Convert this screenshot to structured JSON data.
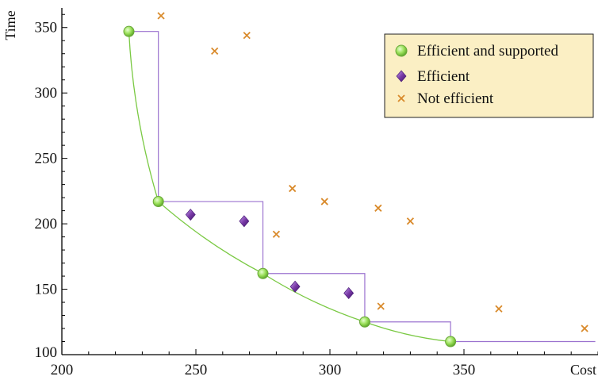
{
  "chart_data": {
    "type": "scatter",
    "xlabel": "Cost",
    "ylabel": "Time",
    "xlim": [
      200,
      400
    ],
    "ylim": [
      100,
      365
    ],
    "xticks": [
      200,
      250,
      300,
      350
    ],
    "yticks": [
      100,
      150,
      200,
      250,
      300,
      350
    ],
    "grid": false,
    "legend_position": "top-right",
    "series": [
      {
        "name": "Efficient and supported",
        "marker": "circle",
        "color": "#8fd14f",
        "points": [
          [
            225,
            347
          ],
          [
            236,
            217
          ],
          [
            275,
            162
          ],
          [
            313,
            125
          ],
          [
            345,
            110
          ]
        ]
      },
      {
        "name": "Efficient",
        "marker": "diamond",
        "color": "#7a3aa8",
        "points": [
          [
            248,
            207
          ],
          [
            268,
            202
          ],
          [
            287,
            152
          ],
          [
            307,
            147
          ]
        ]
      },
      {
        "name": "Not efficient",
        "marker": "cross",
        "color": "#d98a2b",
        "points": [
          [
            237,
            359
          ],
          [
            257,
            332
          ],
          [
            269,
            344
          ],
          [
            280,
            192
          ],
          [
            286,
            227
          ],
          [
            298,
            217
          ],
          [
            318,
            212
          ],
          [
            319,
            137
          ],
          [
            330,
            202
          ],
          [
            363,
            135
          ],
          [
            395,
            120
          ]
        ]
      }
    ],
    "supported_frontier_color": "#7ac943",
    "step_frontier_color": "#9b72cf",
    "step_end_x": 399
  }
}
